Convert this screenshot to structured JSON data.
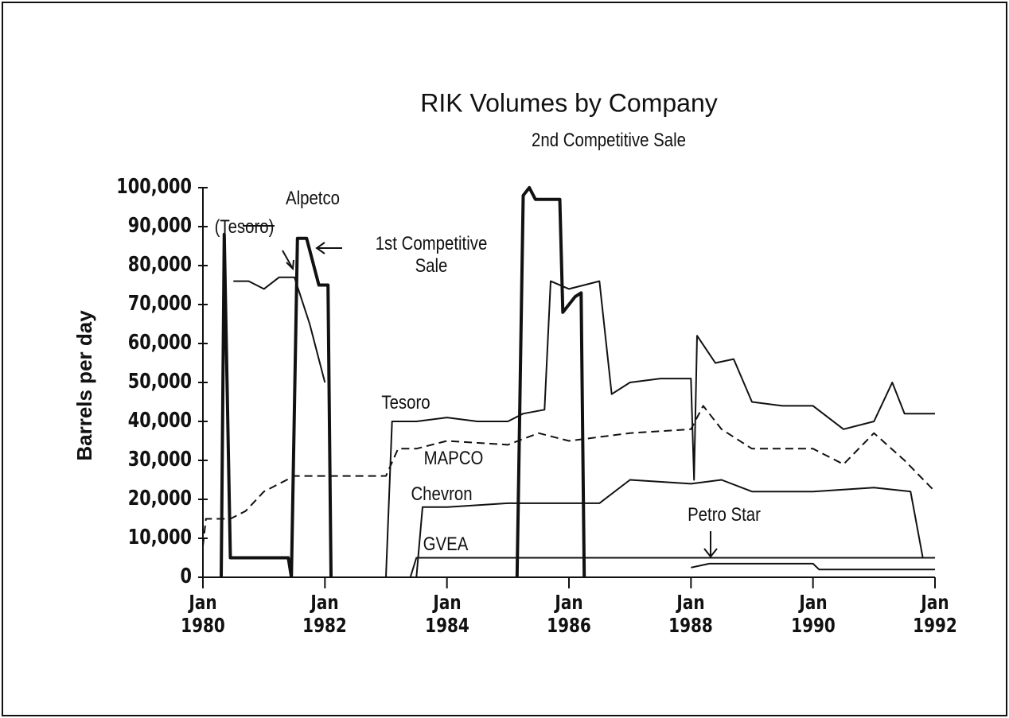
{
  "chart_data": {
    "type": "line",
    "title": "RIK Volumes by Company",
    "ylabel": "Barrels per day",
    "xlim": [
      1980,
      1992
    ],
    "ylim": [
      0,
      100000
    ],
    "xticks": [
      {
        "value": 1980,
        "label": "Jan 1980"
      },
      {
        "value": 1982,
        "label": "Jan 1982"
      },
      {
        "value": 1984,
        "label": "Jan 1984"
      },
      {
        "value": 1986,
        "label": "Jan 1986"
      },
      {
        "value": 1988,
        "label": "Jan 1988"
      },
      {
        "value": 1990,
        "label": "Jan 1990"
      },
      {
        "value": 1992,
        "label": "Jan 1992"
      }
    ],
    "yticks": [
      0,
      {
        "value": 10000,
        "label": "10,000"
      },
      {
        "value": 20000,
        "label": "20,000"
      },
      {
        "value": 30000,
        "label": "30,000"
      },
      {
        "value": 40000,
        "label": "40,000"
      },
      {
        "value": 50000,
        "label": "50,000"
      },
      {
        "value": 60000,
        "label": "60,000"
      },
      {
        "value": 70000,
        "label": "70,000"
      },
      {
        "value": 80000,
        "label": "80,000"
      },
      {
        "value": 90000,
        "label": "90,000"
      },
      {
        "value": 100000,
        "label": "100,000"
      }
    ],
    "annotations": [
      "Alpetco"
    ],
    "series": [
      {
        "name": "Tesoro",
        "color": "#111111",
        "style": "solid",
        "x": [
          1980.5,
          1980.75,
          1981.0,
          1981.25,
          1981.5,
          1981.75,
          1982.0,
          1982.5,
          1983.0,
          1983.1,
          1983.5,
          1984.0,
          1984.5,
          1985.0,
          1985.25,
          1985.6,
          1985.7,
          1986.0,
          1986.5,
          1986.7,
          1987.0,
          1987.5,
          1988.0,
          1988.05,
          1988.1,
          1988.4,
          1988.7,
          1989.0,
          1989.5,
          1990.0,
          1990.5,
          1991.0,
          1991.3,
          1991.5,
          1992.0
        ],
        "values": [
          76000,
          76000,
          74000,
          77000,
          77000,
          65000,
          50000,
          null,
          0,
          40000,
          40000,
          41000,
          40000,
          40000,
          42000,
          43000,
          76000,
          74000,
          76000,
          47000,
          50000,
          51000,
          51000,
          25000,
          62000,
          55000,
          56000,
          45000,
          44000,
          44000,
          38000,
          40000,
          50000,
          42000,
          42000
        ]
      },
      {
        "name": "MAPCO",
        "color": "#111111",
        "style": "dashed",
        "x": [
          1980.0,
          1980.05,
          1980.45,
          1980.7,
          1981.0,
          1981.5,
          1982.0,
          1983.0,
          1983.2,
          1983.5,
          1984.0,
          1985.0,
          1985.5,
          1986.0,
          1987.0,
          1988.0,
          1988.2,
          1988.5,
          1989.0,
          1990.0,
          1990.5,
          1991.0,
          1991.5,
          1992.0
        ],
        "values": [
          8000,
          15000,
          15000,
          17000,
          22000,
          26000,
          26000,
          26000,
          33000,
          33000,
          35000,
          34000,
          37000,
          35000,
          37000,
          38000,
          44000,
          38000,
          33000,
          33000,
          29000,
          37000,
          30000,
          22000
        ]
      },
      {
        "name": "Chevron",
        "color": "#111111",
        "style": "solid",
        "x": [
          1983.5,
          1983.6,
          1984.0,
          1985.0,
          1986.0,
          1986.5,
          1987.0,
          1988.0,
          1988.5,
          1989.0,
          1990.0,
          1991.0,
          1991.6,
          1991.8,
          1992.0
        ],
        "values": [
          0,
          18000,
          18000,
          19000,
          19000,
          19000,
          25000,
          24000,
          25000,
          22000,
          22000,
          23000,
          22000,
          5000,
          5000
        ]
      },
      {
        "name": "GVEA",
        "color": "#111111",
        "style": "solid",
        "x": [
          1983.4,
          1983.5,
          1985.0,
          1987.0,
          1988.0,
          1990.0,
          1992.0
        ],
        "values": [
          0,
          5000,
          5000,
          5000,
          5000,
          5000,
          5000
        ]
      },
      {
        "name": "Petro Star",
        "color": "#111111",
        "style": "solid",
        "x": [
          1988.0,
          1988.3,
          1990.0,
          1990.1,
          1992.0
        ],
        "values": [
          2500,
          3500,
          3500,
          2000,
          2000
        ]
      },
      {
        "name": "(Tesoro)",
        "color": "#111111",
        "style": "bold",
        "x": [
          1980.3,
          1980.35,
          1980.45,
          1981.4,
          1981.45
        ],
        "values": [
          0,
          88000,
          5000,
          5000,
          0
        ]
      },
      {
        "name": "1st Competitive Sale",
        "color": "#111111",
        "style": "bold",
        "x": [
          1981.45,
          1981.55,
          1981.7,
          1981.9,
          1982.05,
          1982.1
        ],
        "values": [
          0,
          87000,
          87000,
          75000,
          75000,
          0
        ]
      },
      {
        "name": "2nd Competitive Sale",
        "color": "#111111",
        "style": "bold",
        "x": [
          1985.15,
          1985.25,
          1985.35,
          1985.45,
          1985.85,
          1985.9,
          1986.1,
          1986.2,
          1986.25
        ],
        "values": [
          0,
          98000,
          100000,
          97000,
          97000,
          68000,
          72000,
          73000,
          0
        ]
      }
    ]
  }
}
